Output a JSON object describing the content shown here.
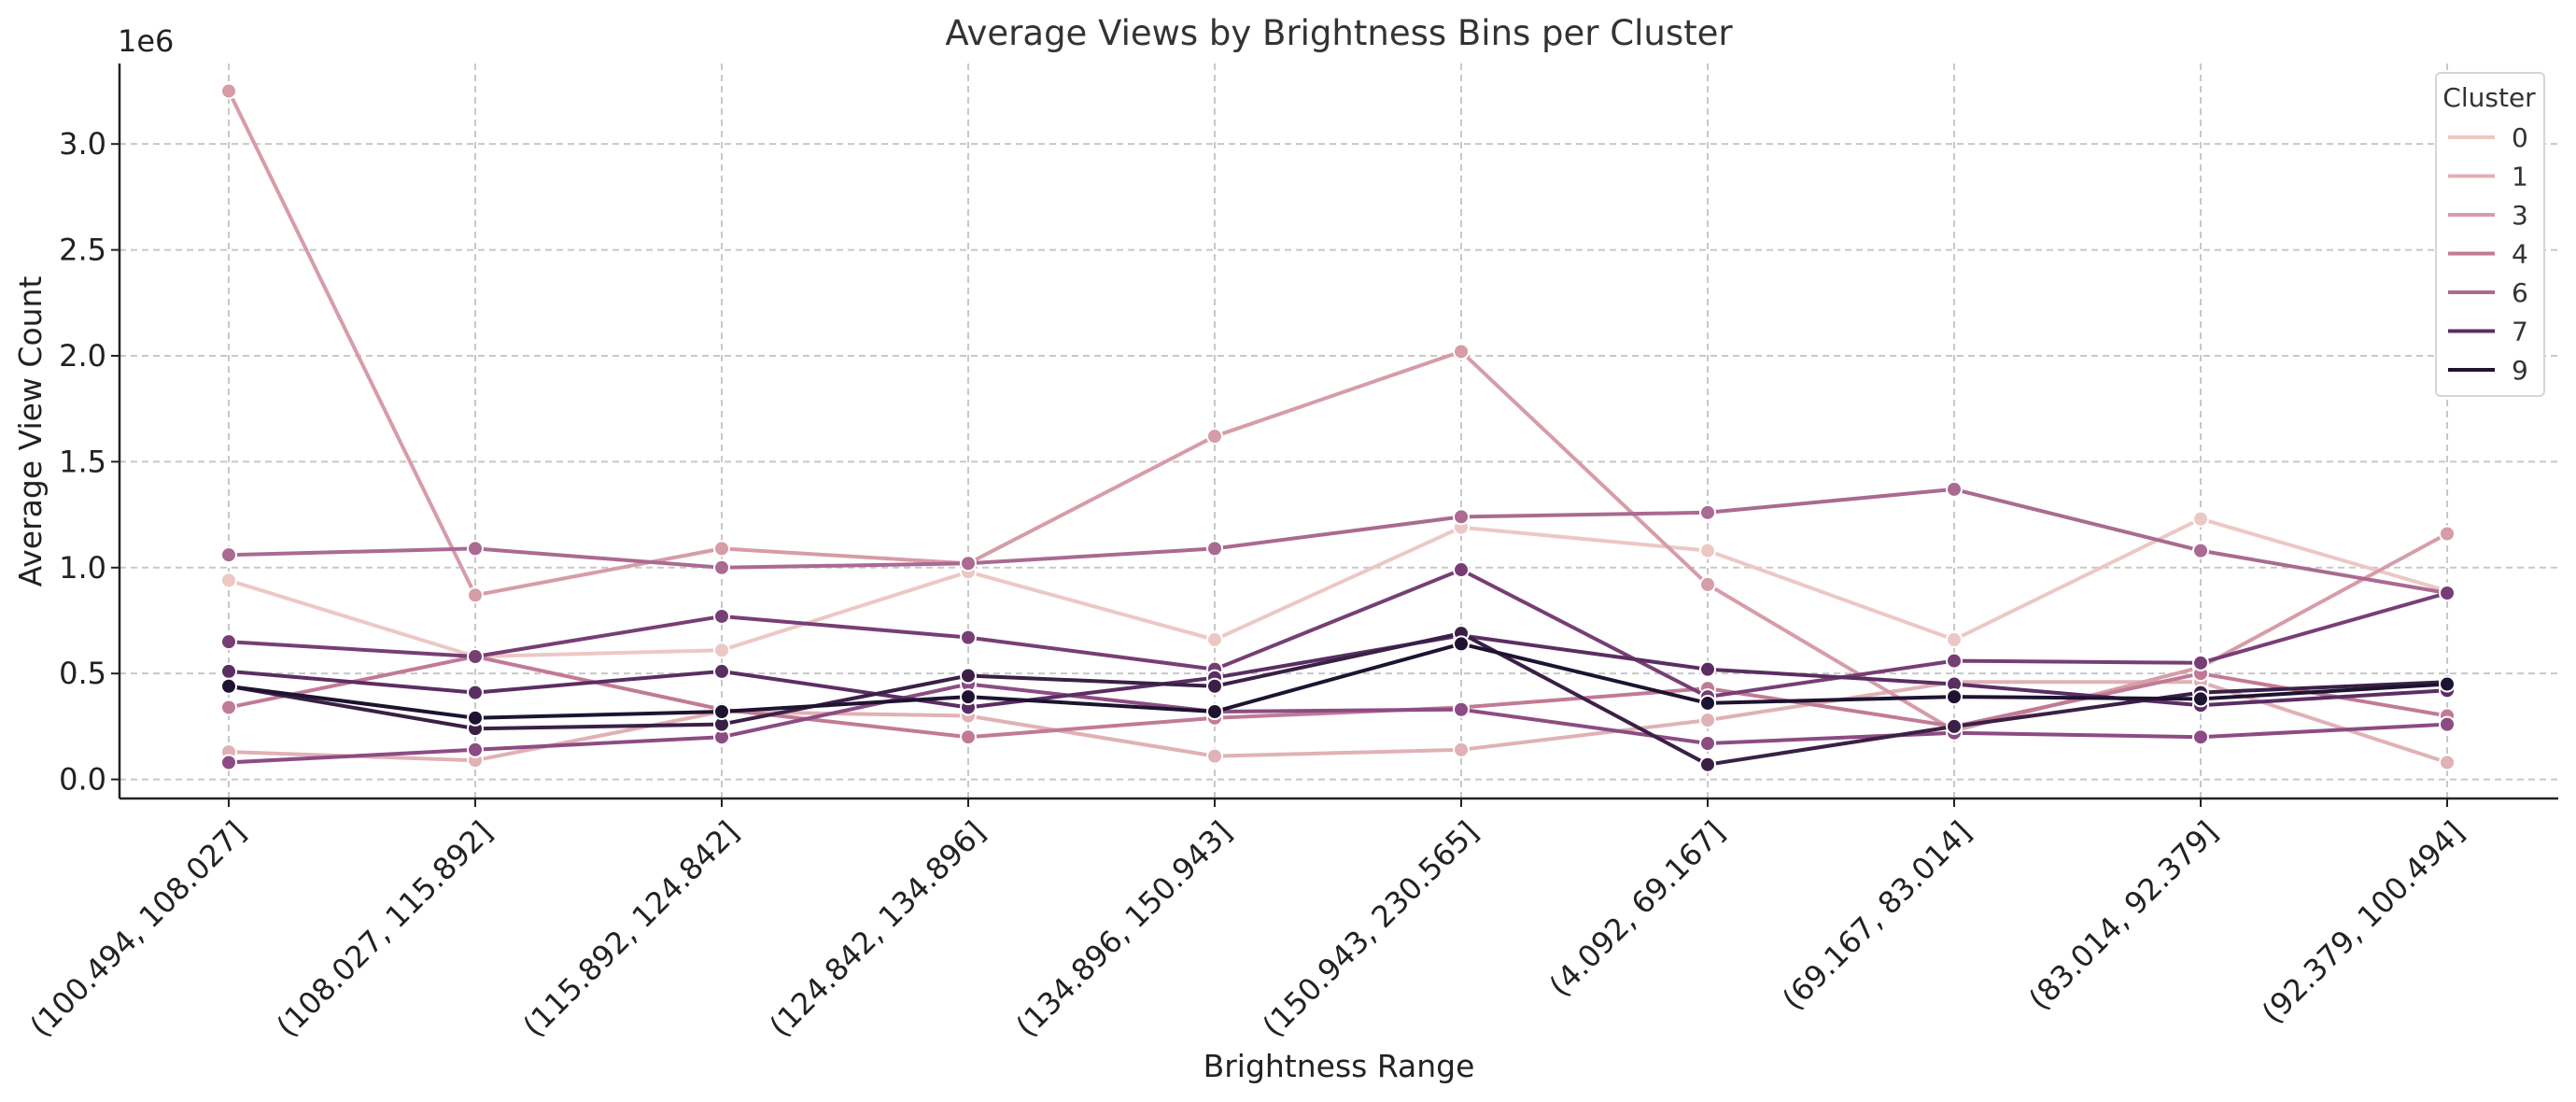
{
  "chart_data": {
    "type": "line",
    "title": "Average Views by Brightness Bins per Cluster",
    "xlabel": "Brightness Range",
    "ylabel": "Average View Count",
    "y_offset_label": "1e6",
    "y_scale": 1000000,
    "ylim": [
      -0.09,
      3.38
    ],
    "yticks": [
      0.0,
      0.5,
      1.0,
      1.5,
      2.0,
      2.5,
      3.0
    ],
    "ytick_labels": [
      "0.0",
      "0.5",
      "1.0",
      "1.5",
      "2.0",
      "2.5",
      "3.0"
    ],
    "grid": true,
    "categories": [
      "(100.494, 108.027]",
      "(108.027, 115.892]",
      "(115.892, 124.842]",
      "(124.842, 134.896]",
      "(134.896, 150.943]",
      "(150.943, 230.565]",
      "(4.092, 69.167]",
      "(69.167, 83.014]",
      "(83.014, 92.379]",
      "(92.379, 100.494]"
    ],
    "legend": {
      "title": "Cluster",
      "position": "upper-right"
    },
    "series": [
      {
        "name": "0",
        "color": "#ecc8c4",
        "values": [
          0.94,
          0.58,
          0.61,
          0.98,
          0.66,
          1.19,
          1.08,
          0.66,
          1.23,
          0.89
        ]
      },
      {
        "name": "1",
        "color": "#e0b1b5",
        "values": [
          0.13,
          0.09,
          0.32,
          0.3,
          0.11,
          0.14,
          0.28,
          0.46,
          0.46,
          0.08
        ]
      },
      {
        "name": "3",
        "color": "#d69ca8",
        "values": [
          3.25,
          0.87,
          1.09,
          1.02,
          1.62,
          2.02,
          0.92,
          0.23,
          0.53,
          1.16
        ]
      },
      {
        "name": "4",
        "color": "#c17a96",
        "values": [
          0.34,
          0.58,
          0.33,
          0.2,
          0.29,
          0.34,
          0.43,
          0.25,
          0.5,
          0.3
        ]
      },
      {
        "name": "6",
        "color": "#aa6a91",
        "values": [
          1.06,
          1.09,
          1.0,
          1.02,
          1.09,
          1.24,
          1.26,
          1.37,
          1.08,
          0.88
        ]
      },
      {
        "name": "",
        "color": "#8c4c83",
        "values": [
          0.08,
          0.14,
          0.2,
          0.45,
          0.32,
          0.33,
          0.17,
          0.22,
          0.2,
          0.26
        ]
      },
      {
        "name": "",
        "color": "#773e75",
        "values": [
          0.65,
          0.58,
          0.77,
          0.67,
          0.52,
          0.99,
          0.39,
          0.56,
          0.55,
          0.88
        ]
      },
      {
        "name": "7",
        "color": "#5b2e63",
        "values": [
          0.51,
          0.41,
          0.51,
          0.34,
          0.48,
          0.68,
          0.52,
          0.45,
          0.35,
          0.42
        ]
      },
      {
        "name": "",
        "color": "#3a2046",
        "values": [
          0.44,
          0.24,
          0.26,
          0.49,
          0.44,
          0.69,
          0.07,
          0.25,
          0.41,
          0.46
        ]
      },
      {
        "name": "9",
        "color": "#1e1330",
        "values": [
          0.44,
          0.29,
          0.32,
          0.39,
          0.32,
          0.64,
          0.36,
          0.39,
          0.38,
          0.45
        ]
      }
    ]
  }
}
